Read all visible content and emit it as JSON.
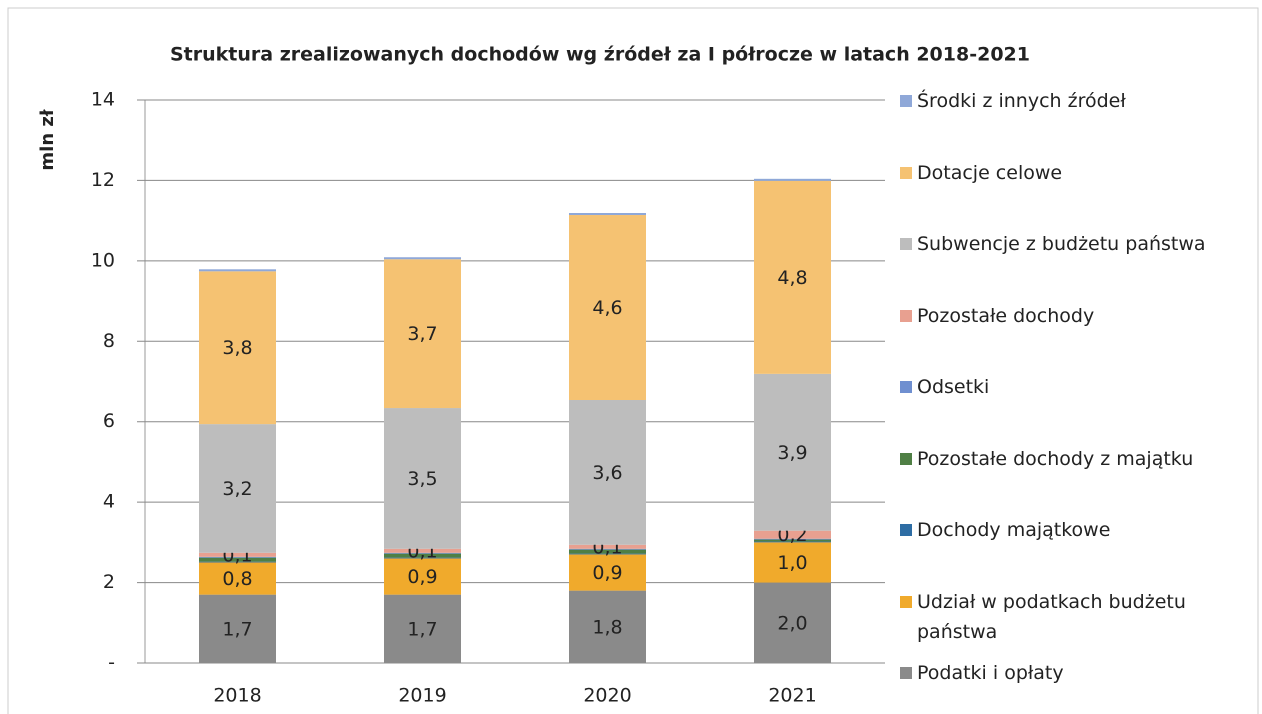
{
  "chart_data": {
    "type": "stacked_bar",
    "title": "Struktura zrealizowanych dochodów wg źródeł za I półrocze w latach 2018-2021",
    "y_label": "mln zł",
    "categories": [
      "2018",
      "2019",
      "2020",
      "2021"
    ],
    "ylim": [
      0,
      14
    ],
    "yticks": [
      {
        "value": 0,
        "label": "-"
      },
      2,
      4,
      6,
      8,
      10,
      12,
      14
    ],
    "grid": true,
    "legend": "right",
    "series": [
      {
        "name": "Podatki i opłaty",
        "color": "#8a8a8a",
        "values": [
          1.7,
          1.7,
          1.8,
          2.0
        ],
        "value_labels": [
          "1,7",
          "1,7",
          "1,8",
          "2,0"
        ]
      },
      {
        "name": "Udział w podatkach budżetu państwa",
        "color": "#f0aa2c",
        "values": [
          0.8,
          0.9,
          0.9,
          1.0
        ],
        "value_labels": [
          "0,8",
          "0,9",
          "0,9",
          "1,0"
        ]
      },
      {
        "name": "Dochody majątkowe",
        "color": "#2e6da4",
        "values": [
          0.02,
          0.02,
          0.02,
          0.02
        ]
      },
      {
        "name": "Pozostałe dochody z majątku",
        "color": "#4f7f45",
        "values": [
          0.1,
          0.1,
          0.1,
          0.05
        ]
      },
      {
        "name": "Odsetki",
        "color": "#6f8fd0",
        "values": [
          0.02,
          0.02,
          0.02,
          0.02
        ]
      },
      {
        "name": "Pozostałe dochody",
        "color": "#e8a090",
        "values": [
          0.1,
          0.1,
          0.1,
          0.2
        ],
        "value_labels": [
          "0,1",
          "0,1",
          "0,1",
          "0,2"
        ]
      },
      {
        "name": "Subwencje z budżetu państwa",
        "color": "#bdbdbd",
        "values": [
          3.2,
          3.5,
          3.6,
          3.9
        ],
        "value_labels": [
          "3,2",
          "3,5",
          "3,6",
          "3,9"
        ]
      },
      {
        "name": "Dotacje celowe",
        "color": "#f5c272",
        "values": [
          3.8,
          3.7,
          4.6,
          4.8
        ],
        "value_labels": [
          "3,8",
          "3,7",
          "4,6",
          "4,8"
        ]
      },
      {
        "name": "Środki z innych źródeł",
        "color": "#8fa8d8",
        "values": [
          0.05,
          0.05,
          0.05,
          0.05
        ]
      }
    ]
  }
}
